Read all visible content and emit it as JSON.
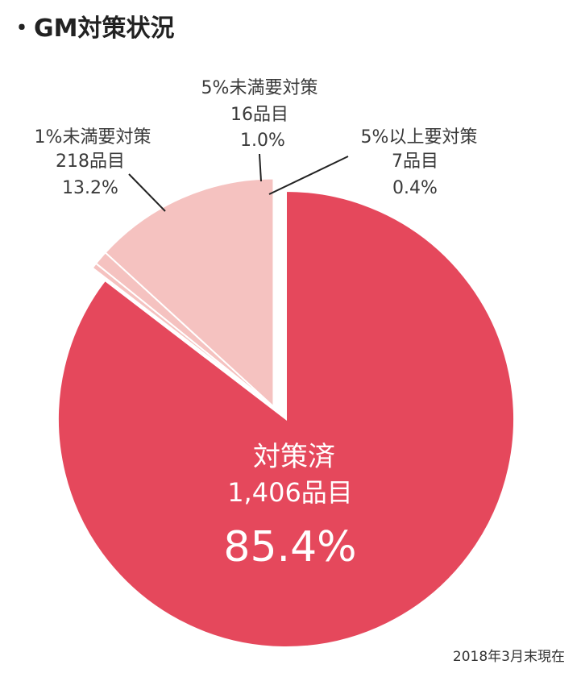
{
  "title": "・GM対策状況",
  "footnote": "2018年3月末現在",
  "chart_data": {
    "type": "pie",
    "slices": [
      {
        "id": "done",
        "name": "対策済",
        "count_label": "1,406品目",
        "percent_label": "85.4%",
        "value": 85.4,
        "color": "#e5485c",
        "exploded": false
      },
      {
        "id": "over5",
        "name": "5%以上要対策",
        "count_label": "7品目",
        "percent_label": "0.4%",
        "value": 0.4,
        "color": "#f5c2c0",
        "exploded": true
      },
      {
        "id": "under5",
        "name": "5%未満要対策",
        "count_label": "16品目",
        "percent_label": "1.0%",
        "value": 1.0,
        "color": "#f5c2c0",
        "exploded": true
      },
      {
        "id": "under1",
        "name": "1%未満要対策",
        "count_label": "218品目",
        "percent_label": "13.2%",
        "value": 13.2,
        "color": "#f5c2c0",
        "exploded": true
      }
    ]
  }
}
